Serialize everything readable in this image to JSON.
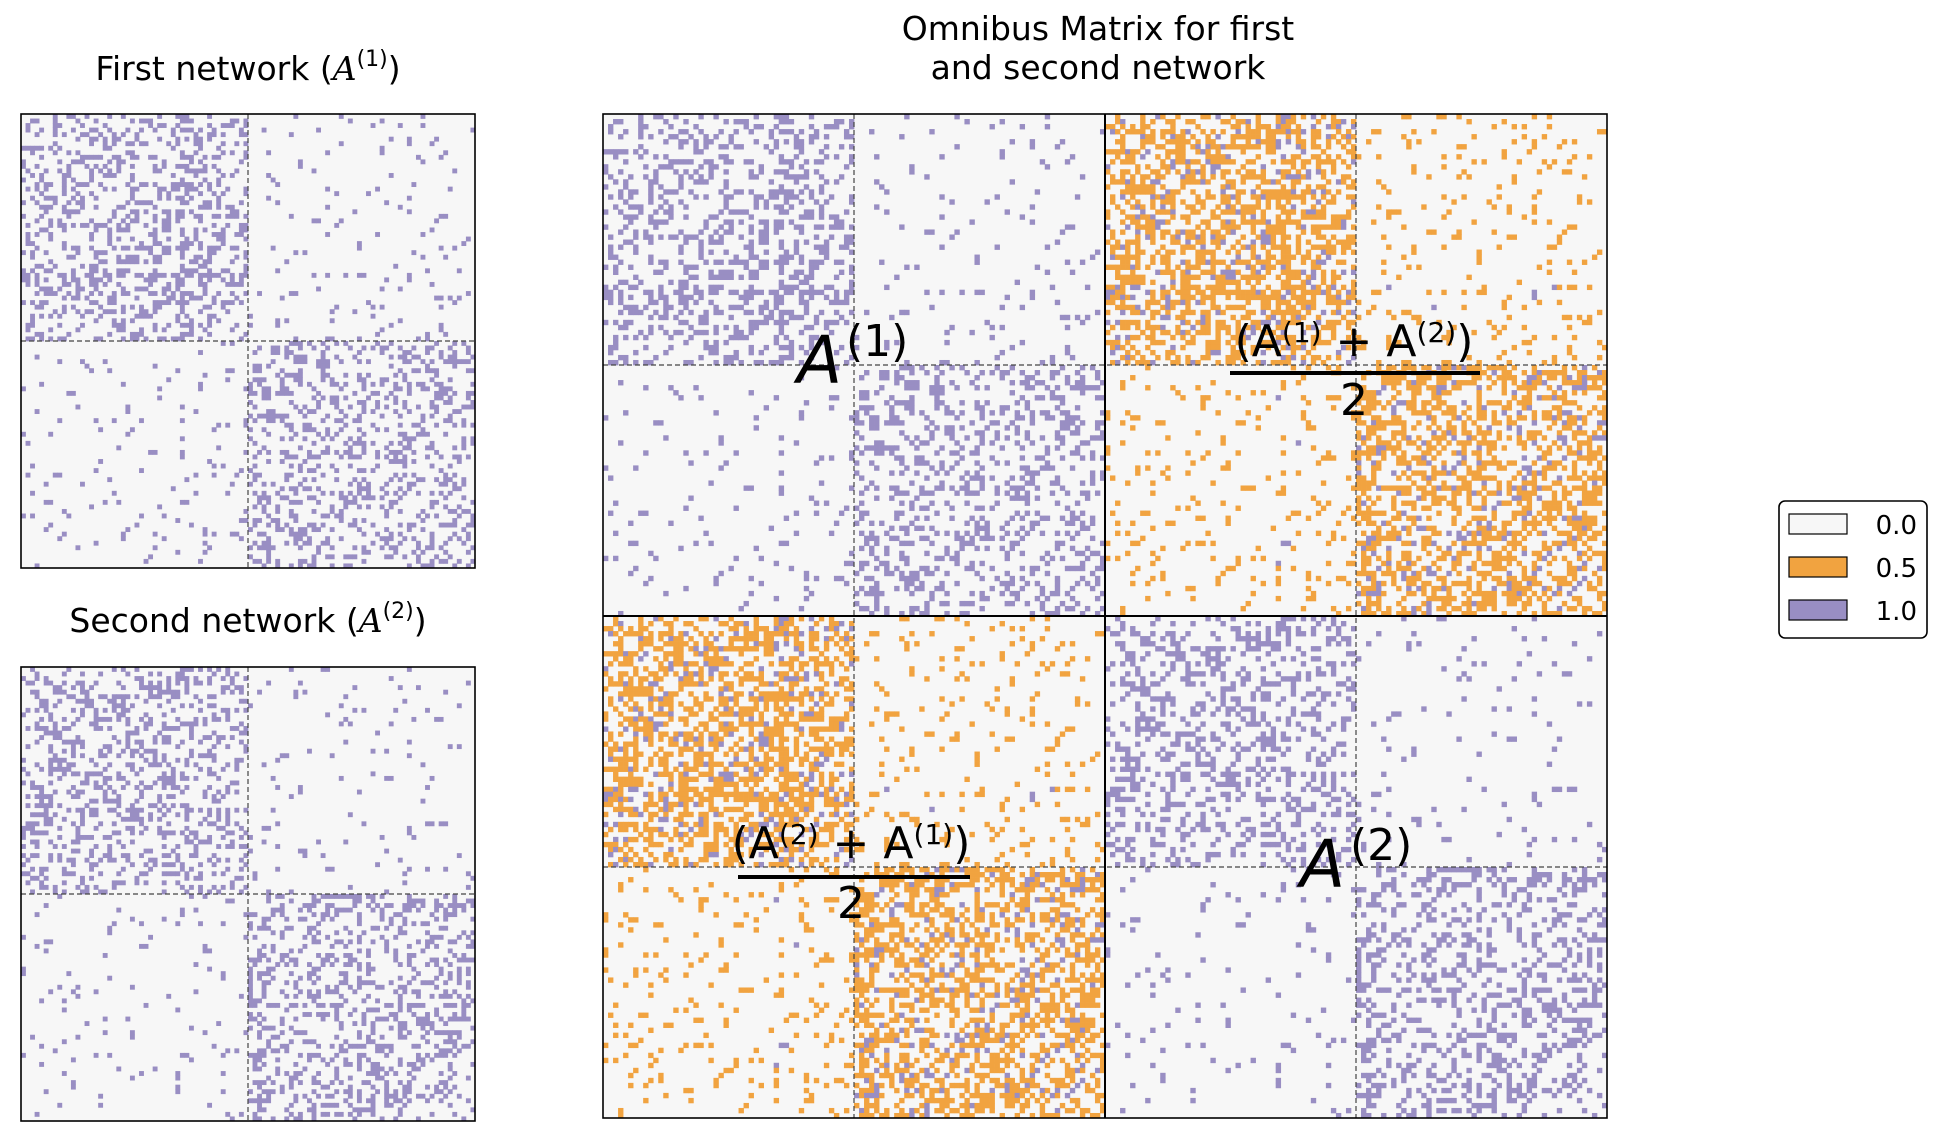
{
  "chart_data": [
    {
      "type": "heatmap",
      "title_text": "First network (",
      "title_math": "A",
      "title_sup": "(1)",
      "title_close": ")",
      "n_nodes": 100,
      "communities": 2,
      "block_probabilities": [
        [
          0.3,
          0.05
        ],
        [
          0.05,
          0.3
        ]
      ]
    },
    {
      "type": "heatmap",
      "title_text": "Second network (",
      "title_math": "A",
      "title_sup": "(2)",
      "title_close": ")",
      "n_nodes": 100,
      "communities": 2,
      "block_probabilities": [
        [
          0.3,
          0.05
        ],
        [
          0.05,
          0.3
        ]
      ]
    },
    {
      "type": "heatmap",
      "title_line1": "Omnibus Matrix for first",
      "title_line2": "and second network",
      "n_nodes": 200,
      "annotations": {
        "top_left": {
          "base": "A",
          "sup": "(1)"
        },
        "top_right": {
          "numerator": "(A",
          "sup1": "(1)",
          "plus": " + A",
          "sup2": "(2)",
          "close": ")",
          "denominator": "2"
        },
        "bottom_left": {
          "numerator": "(A",
          "sup1": "(2)",
          "plus": " + A",
          "sup2": "(1)",
          "close": ")",
          "denominator": "2"
        },
        "bottom_right": {
          "base": "A",
          "sup": "(2)"
        }
      }
    }
  ],
  "legend": {
    "entries": [
      {
        "label": "0.0",
        "color": "#f7f7f7"
      },
      {
        "label": "0.5",
        "color": "#f1a340"
      },
      {
        "label": "1.0",
        "color": "#998ec3"
      }
    ]
  },
  "colors": {
    "zero": "#f7f7f7",
    "half": "#f1a340",
    "one": "#998ec3"
  }
}
